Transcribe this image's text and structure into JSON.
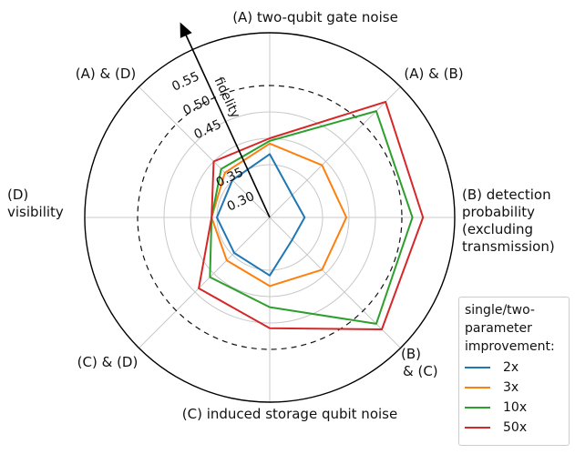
{
  "chart_data": {
    "type": "radar",
    "axes": [
      "(A) two-qubit gate noise",
      "(A) & (B)",
      "(B) detection probability (excluding transmission)",
      "(B) & (C)",
      "(C) induced storage qubit noise",
      "(C) & (D)",
      "(D) visibility",
      "(A) & (D)"
    ],
    "axis_label_lines": [
      [
        "(A) two-qubit gate noise"
      ],
      [
        "(A) & (B)"
      ],
      [
        "(B) detection",
        "probability",
        "(excluding",
        "transmission)"
      ],
      [
        "(B)",
        "& (C)"
      ],
      [
        "(C) induced storage qubit noise"
      ],
      [
        "(C) & (D)"
      ],
      [
        "(D)",
        "visibility"
      ],
      [
        "(A) & (D)"
      ]
    ],
    "radial_label": "fidelity",
    "radial_ticks": [
      0.3,
      0.35,
      0.45,
      0.5,
      0.55
    ],
    "radial_tick_labels": [
      "0.30",
      "0.35",
      "0.45",
      "0.50",
      "0.55"
    ],
    "grid_rings": [
      0.35,
      0.4,
      0.45,
      0.5
    ],
    "dashed_ring": 0.5,
    "rlim": [
      0.25,
      0.6
    ],
    "series": [
      {
        "name": "2x",
        "color": "#1f77b4",
        "values": [
          0.37,
          0.31,
          0.316,
          0.31,
          0.36,
          0.345,
          0.35,
          0.35
        ]
      },
      {
        "name": "3x",
        "color": "#ff7f0e",
        "values": [
          0.39,
          0.39,
          0.395,
          0.39,
          0.38,
          0.365,
          0.36,
          0.37
        ]
      },
      {
        "name": "10x",
        "color": "#2ca02c",
        "values": [
          0.395,
          0.535,
          0.52,
          0.535,
          0.42,
          0.41,
          0.36,
          0.38
        ]
      },
      {
        "name": "50x",
        "color": "#d62728",
        "values": [
          0.4,
          0.56,
          0.54,
          0.55,
          0.46,
          0.44,
          0.36,
          0.4
        ]
      }
    ],
    "legend": {
      "title": "single/two-\nparameter\nimprovement:",
      "position": "bottom-right"
    }
  }
}
